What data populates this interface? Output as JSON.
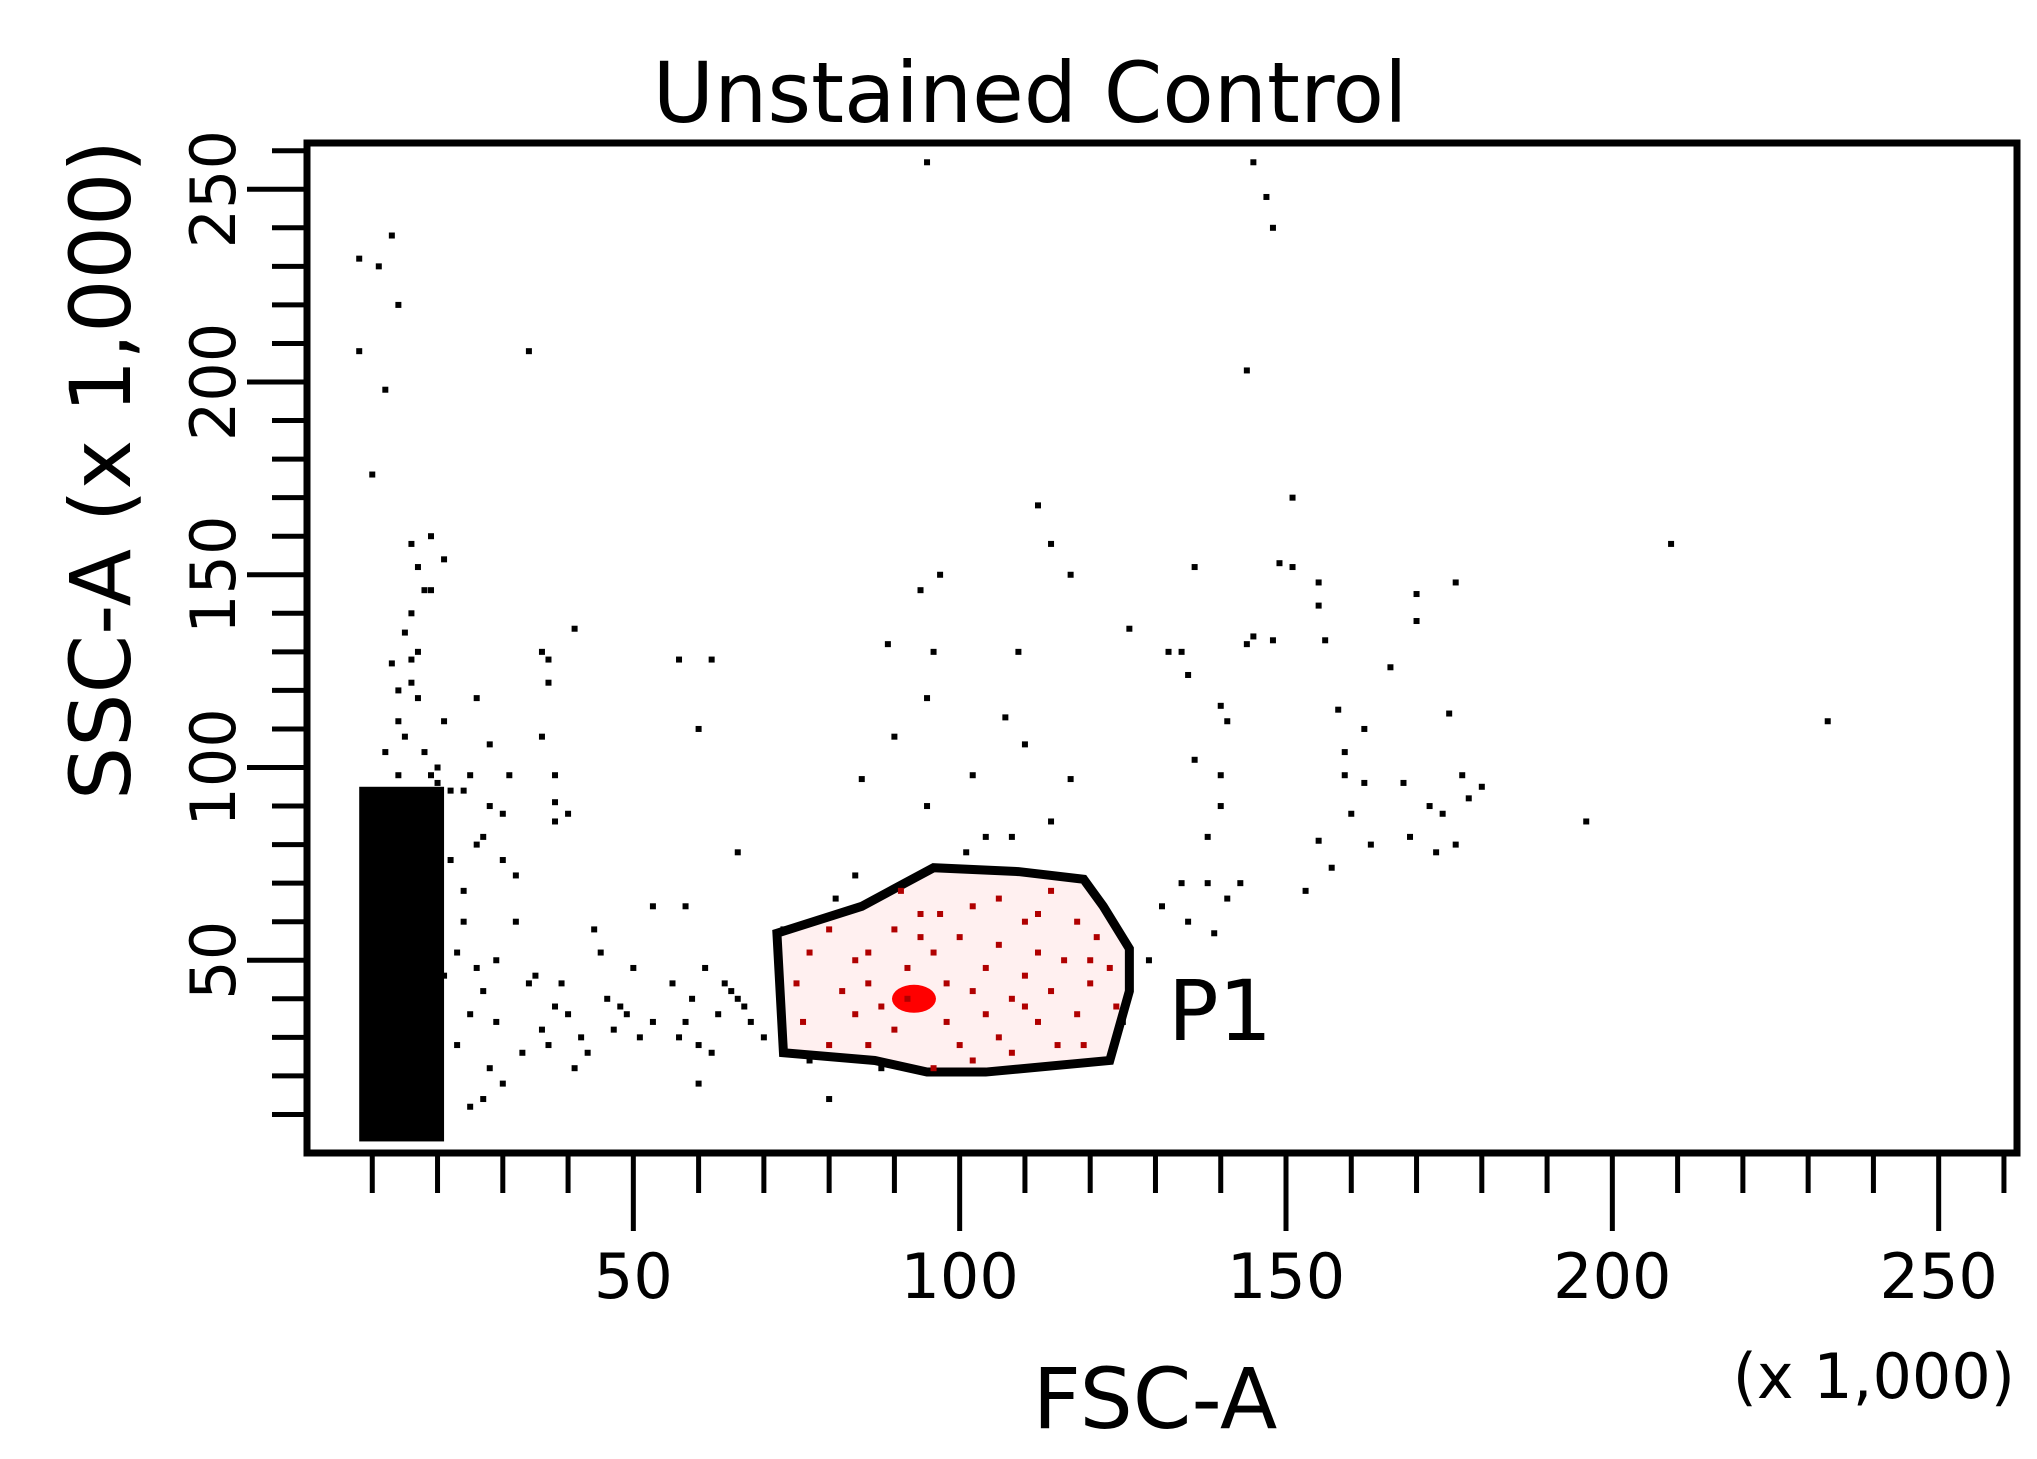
{
  "chart_data": {
    "type": "scatter",
    "title": "Unstained Control",
    "xlabel": "FSC-A",
    "ylabel": "SSC-A (x 1,000)",
    "x_scale_label": "(x 1,000)",
    "xlim": [
      0,
      262
    ],
    "ylim": [
      0,
      262
    ],
    "x_ticks": [
      50,
      100,
      150,
      200,
      250
    ],
    "y_ticks": [
      50,
      100,
      150,
      200,
      250
    ],
    "x_tick_labels": [
      "50",
      "100",
      "150",
      "200",
      "250"
    ],
    "y_tick_labels": [
      "50",
      "100",
      "150",
      "200",
      "250"
    ],
    "grid": false,
    "legend": "none",
    "colors": {
      "events": "#000000",
      "gated_events": "#b00000",
      "gated_core": "#ff0000",
      "gate_fill": "#fff0f0"
    },
    "gate": {
      "name": "P1",
      "vertices": [
        [
          72,
          57
        ],
        [
          85,
          64
        ],
        [
          96,
          74
        ],
        [
          109,
          73
        ],
        [
          119,
          71
        ],
        [
          122,
          64
        ],
        [
          126,
          53
        ],
        [
          126,
          42
        ],
        [
          123,
          24
        ],
        [
          104,
          21
        ],
        [
          95,
          21
        ],
        [
          87,
          24
        ],
        [
          73,
          26
        ]
      ]
    },
    "series": [
      {
        "points": [
          [
            12,
            40
          ],
          [
            18,
            52
          ],
          [
            14,
            24
          ],
          [
            16,
            32
          ],
          [
            15,
            44
          ],
          [
            11,
            13
          ],
          [
            13,
            58
          ],
          [
            17,
            66
          ],
          [
            12,
            76
          ],
          [
            16,
            62
          ],
          [
            9,
            20
          ],
          [
            19,
            30
          ],
          [
            20,
            38
          ],
          [
            14,
            86
          ],
          [
            11,
            48
          ],
          [
            18,
            72
          ],
          [
            13,
            18
          ],
          [
            15,
            56
          ],
          [
            21,
            46
          ],
          [
            10,
            60
          ],
          [
            15,
            108
          ],
          [
            14,
            98
          ],
          [
            17,
            118
          ],
          [
            16,
            122
          ],
          [
            13,
            127
          ],
          [
            15,
            135
          ],
          [
            16,
            140
          ],
          [
            18,
            146
          ],
          [
            17,
            152
          ],
          [
            19,
            160
          ],
          [
            16,
            88
          ],
          [
            20,
            96
          ],
          [
            21,
            112
          ],
          [
            14,
            112
          ],
          [
            12,
            104
          ],
          [
            17,
            130
          ],
          [
            19,
            146
          ],
          [
            21,
            154
          ],
          [
            22,
            76
          ],
          [
            24,
            60
          ],
          [
            23,
            28
          ],
          [
            25,
            36
          ],
          [
            27,
            42
          ],
          [
            26,
            48
          ],
          [
            28,
            22
          ],
          [
            24,
            68
          ],
          [
            26,
            80
          ],
          [
            28,
            90
          ],
          [
            24,
            94
          ],
          [
            29,
            34
          ],
          [
            30,
            18
          ],
          [
            27,
            14
          ],
          [
            25,
            12
          ],
          [
            23,
            52
          ],
          [
            30,
            76
          ],
          [
            32,
            60
          ],
          [
            28,
            106
          ],
          [
            25,
            98
          ],
          [
            27,
            82
          ],
          [
            31,
            98
          ],
          [
            26,
            118
          ],
          [
            30,
            88
          ],
          [
            32,
            72
          ],
          [
            29,
            50
          ],
          [
            33,
            26
          ],
          [
            35,
            46
          ],
          [
            34,
            44
          ],
          [
            36,
            32
          ],
          [
            37,
            28
          ],
          [
            38,
            38
          ],
          [
            40,
            36
          ],
          [
            41,
            22
          ],
          [
            42,
            30
          ],
          [
            43,
            26
          ],
          [
            44,
            58
          ],
          [
            45,
            52
          ],
          [
            39,
            44
          ],
          [
            46,
            40
          ],
          [
            47,
            32
          ],
          [
            48,
            38
          ],
          [
            49,
            36
          ],
          [
            50,
            48
          ],
          [
            51,
            30
          ],
          [
            53,
            34
          ],
          [
            56,
            44
          ],
          [
            57,
            30
          ],
          [
            58,
            34
          ],
          [
            59,
            40
          ],
          [
            60,
            28
          ],
          [
            61,
            48
          ],
          [
            63,
            36
          ],
          [
            65,
            42
          ],
          [
            67,
            38
          ],
          [
            68,
            34
          ],
          [
            70,
            30
          ],
          [
            62,
            26
          ],
          [
            64,
            44
          ],
          [
            66,
            40
          ],
          [
            36,
            108
          ],
          [
            38,
            98
          ],
          [
            41,
            136
          ],
          [
            37,
            128
          ],
          [
            37,
            122
          ],
          [
            38,
            91
          ],
          [
            38,
            86
          ],
          [
            40,
            88
          ],
          [
            57,
            128
          ],
          [
            60,
            110
          ],
          [
            62,
            128
          ],
          [
            58,
            64
          ],
          [
            53,
            64
          ],
          [
            66,
            78
          ],
          [
            73,
            58
          ],
          [
            77,
            24
          ],
          [
            80,
            14
          ],
          [
            60,
            18
          ],
          [
            8,
            232
          ],
          [
            11,
            230
          ],
          [
            14,
            220
          ],
          [
            13,
            238
          ],
          [
            8,
            208
          ],
          [
            12,
            198
          ],
          [
            10,
            176
          ],
          [
            34,
            208
          ],
          [
            36,
            130
          ],
          [
            16,
            158
          ],
          [
            14,
            120
          ],
          [
            18,
            104
          ],
          [
            16,
            128
          ],
          [
            20,
            100
          ],
          [
            22,
            94
          ],
          [
            12,
            92
          ],
          [
            15,
            92
          ],
          [
            19,
            98
          ],
          [
            81,
            66
          ],
          [
            84,
            72
          ],
          [
            91,
            68
          ],
          [
            94,
            62
          ],
          [
            97,
            62
          ],
          [
            102,
            64
          ],
          [
            106,
            66
          ],
          [
            110,
            60
          ],
          [
            112,
            62
          ],
          [
            114,
            68
          ],
          [
            118,
            60
          ],
          [
            121,
            56
          ],
          [
            123,
            48
          ],
          [
            120,
            44
          ],
          [
            124,
            38
          ],
          [
            125,
            34
          ],
          [
            119,
            28
          ],
          [
            115,
            28
          ],
          [
            108,
            26
          ],
          [
            102,
            24
          ],
          [
            96,
            22
          ],
          [
            88,
            22
          ],
          [
            80,
            28
          ],
          [
            76,
            34
          ],
          [
            75,
            44
          ],
          [
            77,
            52
          ],
          [
            80,
            58
          ],
          [
            84,
            50
          ],
          [
            86,
            44
          ],
          [
            88,
            38
          ],
          [
            90,
            32
          ],
          [
            98,
            34
          ],
          [
            104,
            36
          ],
          [
            110,
            38
          ],
          [
            114,
            42
          ],
          [
            116,
            50
          ],
          [
            112,
            52
          ],
          [
            106,
            54
          ],
          [
            100,
            56
          ],
          [
            94,
            56
          ],
          [
            92,
            48
          ],
          [
            86,
            28
          ],
          [
            84,
            36
          ],
          [
            82,
            42
          ],
          [
            100,
            28
          ],
          [
            106,
            30
          ],
          [
            112,
            34
          ],
          [
            118,
            36
          ],
          [
            90,
            58
          ],
          [
            96,
            52
          ],
          [
            104,
            48
          ],
          [
            110,
            46
          ],
          [
            98,
            44
          ],
          [
            102,
            42
          ],
          [
            108,
            40
          ],
          [
            92,
            40
          ],
          [
            86,
            52
          ],
          [
            120,
            50
          ],
          [
            95,
            257
          ],
          [
            145,
            257
          ],
          [
            147,
            248
          ],
          [
            148,
            240
          ],
          [
            144,
            203
          ],
          [
            151,
            170
          ],
          [
            112,
            168
          ],
          [
            114,
            158
          ],
          [
            117,
            150
          ],
          [
            94,
            146
          ],
          [
            97,
            150
          ],
          [
            96,
            130
          ],
          [
            89,
            132
          ],
          [
            95,
            118
          ],
          [
            90,
            108
          ],
          [
            85,
            97
          ],
          [
            109,
            130
          ],
          [
            107,
            113
          ],
          [
            110,
            106
          ],
          [
            114,
            86
          ],
          [
            108,
            82
          ],
          [
            104,
            82
          ],
          [
            101,
            78
          ],
          [
            95,
            90
          ],
          [
            102,
            98
          ],
          [
            117,
            97
          ],
          [
            126,
            136
          ],
          [
            132,
            130
          ],
          [
            134,
            130
          ],
          [
            135,
            124
          ],
          [
            140,
            116
          ],
          [
            141,
            112
          ],
          [
            136,
            102
          ],
          [
            144,
            132
          ],
          [
            145,
            134
          ],
          [
            149,
            153
          ],
          [
            151,
            152
          ],
          [
            155,
            148
          ],
          [
            155,
            142
          ],
          [
            158,
            115
          ],
          [
            159,
            104
          ],
          [
            159,
            98
          ],
          [
            160,
            88
          ],
          [
            162,
            96
          ],
          [
            168,
            96
          ],
          [
            172,
            90
          ],
          [
            170,
            145
          ],
          [
            170,
            138
          ],
          [
            166,
            126
          ],
          [
            175,
            114
          ],
          [
            177,
            98
          ],
          [
            180,
            95
          ],
          [
            174,
            88
          ],
          [
            178,
            92
          ],
          [
            173,
            78
          ],
          [
            176,
            80
          ],
          [
            169,
            82
          ],
          [
            163,
            80
          ],
          [
            155,
            81
          ],
          [
            157,
            74
          ],
          [
            153,
            68
          ],
          [
            138,
            70
          ],
          [
            141,
            66
          ],
          [
            139,
            57
          ],
          [
            135,
            60
          ],
          [
            131,
            64
          ],
          [
            134,
            70
          ],
          [
            140,
            90
          ],
          [
            140,
            98
          ],
          [
            156,
            133
          ],
          [
            162,
            110
          ],
          [
            176,
            148
          ],
          [
            196,
            86
          ],
          [
            209,
            158
          ],
          [
            233,
            112
          ],
          [
            136,
            152
          ],
          [
            148,
            133
          ],
          [
            143,
            70
          ],
          [
            138,
            82
          ],
          [
            129,
            50
          ]
        ]
      }
    ]
  }
}
